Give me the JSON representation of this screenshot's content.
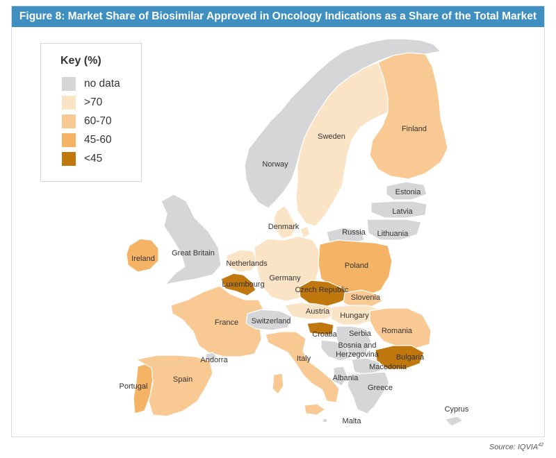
{
  "title": "Figure 8: Market Share of Biosimilar Approved in Oncology Indications as a Share of the Total Market",
  "source": {
    "label": "Source: IQVIA",
    "ref": "42"
  },
  "legend": {
    "title": "Key (%)",
    "items": [
      {
        "label": "no data",
        "color": "#d6d6d8"
      },
      {
        "label": ">70",
        "color": "#fbe3c6"
      },
      {
        "label": "60-70",
        "color": "#f9c993"
      },
      {
        "label": "45-60",
        "color": "#f5b366"
      },
      {
        "label": "<45",
        "color": "#c0780e"
      }
    ]
  },
  "colors": {
    "title_bar": "#3f8fc0",
    "sea": "#ffffff",
    "border": "#ffffff"
  },
  "countries": [
    {
      "name": "Norway",
      "category": "no data"
    },
    {
      "name": "Sweden",
      "category": ">70"
    },
    {
      "name": "Finland",
      "category": "60-70"
    },
    {
      "name": "Estonia",
      "category": "no data"
    },
    {
      "name": "Latvia",
      "category": "no data"
    },
    {
      "name": "Lithuania",
      "category": "no data"
    },
    {
      "name": "Russia",
      "category": "no data"
    },
    {
      "name": "Denmark",
      "category": ">70"
    },
    {
      "name": "Great Britain",
      "category": "no data"
    },
    {
      "name": "Ireland",
      "category": "45-60"
    },
    {
      "name": "Netherlands",
      "category": ">70"
    },
    {
      "name": "Germany",
      "category": ">70"
    },
    {
      "name": "Poland",
      "category": "45-60"
    },
    {
      "name": "Luxembourg",
      "category": "<45"
    },
    {
      "name": "Czech Republic",
      "category": "<45"
    },
    {
      "name": "Slovenia",
      "category": "60-70"
    },
    {
      "name": "France",
      "category": "60-70"
    },
    {
      "name": "Switzerland",
      "category": "no data"
    },
    {
      "name": "Austria",
      "category": ">70"
    },
    {
      "name": "Hungary",
      "category": ">70"
    },
    {
      "name": "Romania",
      "category": "60-70"
    },
    {
      "name": "Croatia",
      "category": "<45"
    },
    {
      "name": "Serbia",
      "category": "no data"
    },
    {
      "name": "Bosnia and Herzegovina",
      "category": "no data"
    },
    {
      "name": "Bulgaria",
      "category": "<45"
    },
    {
      "name": "Macedonia",
      "category": "no data"
    },
    {
      "name": "Andorra",
      "category": "no data"
    },
    {
      "name": "Italy",
      "category": "60-70"
    },
    {
      "name": "Albania",
      "category": "no data"
    },
    {
      "name": "Portugal",
      "category": "45-60"
    },
    {
      "name": "Spain",
      "category": "60-70"
    },
    {
      "name": "Greece",
      "category": "no data"
    },
    {
      "name": "Malta",
      "category": "no data"
    },
    {
      "name": "Cyprus",
      "category": "no data"
    }
  ]
}
